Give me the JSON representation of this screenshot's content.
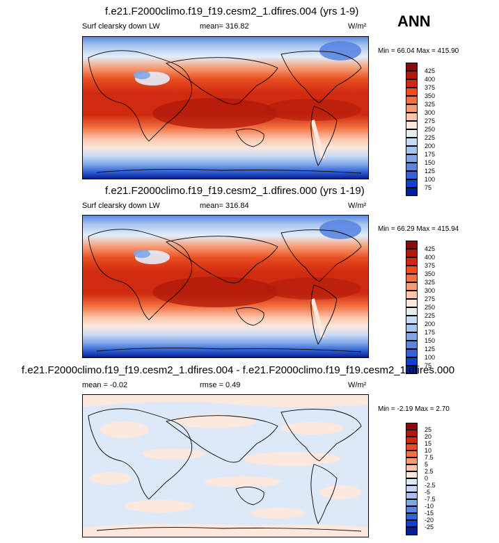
{
  "season": "ANN",
  "units": "W/m²",
  "panels": [
    {
      "title": "f.e21.F2000climo.f19_f19.cesm2_1.dfires.004 (yrs 1-9)",
      "variable": "Surf clearsky down LW",
      "stat": "mean= 316.82",
      "minmax": "Min =  66.04 Max = 415.90",
      "levels": [
        "425",
        "400",
        "375",
        "350",
        "325",
        "300",
        "275",
        "250",
        "225",
        "200",
        "175",
        "150",
        "125",
        "100",
        "75"
      ],
      "colors": [
        "#8b0a0a",
        "#b01a0a",
        "#d02a10",
        "#e84e20",
        "#f27042",
        "#f79b73",
        "#fac6aa",
        "#fde8dd",
        "#e3eefa",
        "#c7dcf4",
        "#a6c4ee",
        "#7fa6e8",
        "#5a86e0",
        "#3164d6",
        "#1340c8",
        "#071f96"
      ]
    },
    {
      "title": "f.e21.F2000climo.f19_f19.cesm2_1.dfires.000 (yrs 1-19)",
      "variable": "Surf clearsky down LW",
      "stat": "mean= 316.84",
      "minmax": "Min =  66.29 Max = 415.94",
      "levels": [
        "425",
        "400",
        "375",
        "350",
        "325",
        "300",
        "275",
        "250",
        "225",
        "200",
        "175",
        "150",
        "125",
        "100",
        "75"
      ],
      "colors": [
        "#8b0a0a",
        "#b01a0a",
        "#d02a10",
        "#e84e20",
        "#f27042",
        "#f79b73",
        "#fac6aa",
        "#fde8dd",
        "#e3eefa",
        "#c7dcf4",
        "#a6c4ee",
        "#7fa6e8",
        "#5a86e0",
        "#3164d6",
        "#1340c8",
        "#071f96"
      ]
    },
    {
      "title": "f.e21.F2000climo.f19_f19.cesm2_1.dfires.004 - f.e21.F2000climo.f19_f19.cesm2_1.dfires.000",
      "stat1": "mean =  -0.02",
      "stat2": "rmse =   0.49",
      "minmax": "Min =  -2.19 Max =   2.70",
      "levels": [
        "25",
        "20",
        "15",
        "10",
        "7.5",
        "5",
        "2.5",
        "0",
        "-2.5",
        "-5",
        "-7.5",
        "-10",
        "-15",
        "-20",
        "-25"
      ],
      "colors": [
        "#8b0a0a",
        "#b01a0a",
        "#d02a10",
        "#e84e20",
        "#f27042",
        "#f79b73",
        "#fac6aa",
        "#fde8dd",
        "#dde8f8",
        "#c2d7f3",
        "#a3c0ee",
        "#7fa6e8",
        "#5a86e0",
        "#3164d6",
        "#1340c8",
        "#071f96"
      ]
    }
  ]
}
